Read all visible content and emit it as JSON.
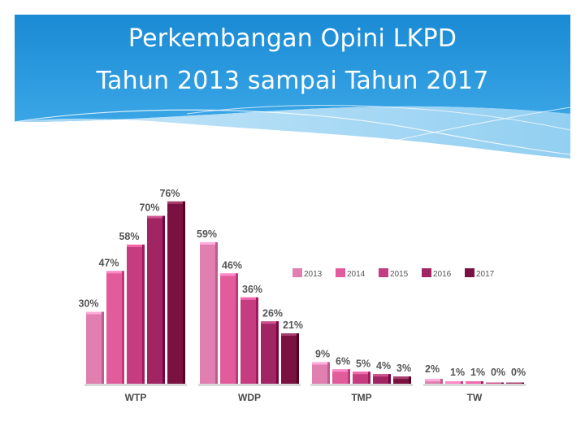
{
  "slide": {
    "title_line_1": "Perkembangan Opini LKPD",
    "title_line_2": "Tahun 2013 sampai  Tahun 2017",
    "header_color": "#1a8fd6"
  },
  "chart_data": {
    "type": "bar",
    "title": "",
    "xlabel": "",
    "ylabel": "",
    "ylim": [
      0,
      80
    ],
    "grid": false,
    "legend_placement": "right",
    "categories": [
      "WTP",
      "WDP",
      "TMP",
      "TW"
    ],
    "series": [
      {
        "name": "2013",
        "color": "#e07fb0",
        "values": [
          30,
          59,
          9,
          2
        ],
        "labels": [
          "30%",
          "59%",
          "9%",
          "2%"
        ]
      },
      {
        "name": "2014",
        "color": "#e25c9b",
        "values": [
          47,
          46,
          6,
          1
        ],
        "labels": [
          "47%",
          "46%",
          "6%",
          "1%"
        ]
      },
      {
        "name": "2015",
        "color": "#c63c80",
        "values": [
          58,
          36,
          5,
          1
        ],
        "labels": [
          "58%",
          "36%",
          "5%",
          "1%"
        ]
      },
      {
        "name": "2016",
        "color": "#a02562",
        "values": [
          70,
          26,
          4,
          0
        ],
        "labels": [
          "70%",
          "26%",
          "4%",
          "0%"
        ]
      },
      {
        "name": "2017",
        "color": "#7a1140",
        "values": [
          76,
          21,
          3,
          0
        ],
        "labels": [
          "76%",
          "21%",
          "3%",
          "0%"
        ]
      }
    ]
  }
}
